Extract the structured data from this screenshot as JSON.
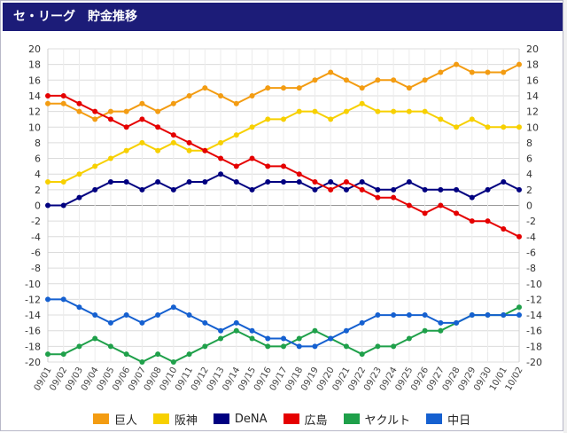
{
  "header": {
    "title": "セ・リーグ　貯金推移"
  },
  "chart_data": {
    "type": "line",
    "title": "セ・リーグ　貯金推移",
    "xlabel": "",
    "ylabel": "",
    "ylim": [
      -20,
      20
    ],
    "yticks": [
      -20,
      -18,
      -16,
      -14,
      -12,
      -10,
      -8,
      -6,
      -4,
      -2,
      0,
      2,
      4,
      6,
      8,
      10,
      12,
      14,
      16,
      18,
      20
    ],
    "grid": true,
    "legend_position": "bottom",
    "categories": [
      "09/01",
      "09/02",
      "09/03",
      "09/04",
      "09/05",
      "09/06",
      "09/07",
      "09/08",
      "09/10",
      "09/11",
      "09/12",
      "09/13",
      "09/14",
      "09/15",
      "09/16",
      "09/17",
      "09/18",
      "09/19",
      "09/20",
      "09/21",
      "09/22",
      "09/23",
      "09/24",
      "09/25",
      "09/26",
      "09/27",
      "09/28",
      "09/29",
      "09/30",
      "10/01",
      "10/02"
    ],
    "series": [
      {
        "name": "巨人",
        "color": "#f39c12",
        "values": [
          13,
          13,
          12,
          11,
          12,
          12,
          13,
          12,
          13,
          14,
          15,
          14,
          13,
          14,
          15,
          15,
          15,
          16,
          17,
          16,
          15,
          16,
          16,
          15,
          16,
          17,
          18,
          17,
          17,
          17,
          18
        ]
      },
      {
        "name": "阪神",
        "color": "#f7d000",
        "values": [
          3,
          3,
          4,
          5,
          6,
          7,
          8,
          7,
          8,
          7,
          7,
          8,
          9,
          10,
          11,
          11,
          12,
          12,
          11,
          12,
          13,
          12,
          12,
          12,
          12,
          11,
          10,
          11,
          10,
          10,
          10
        ]
      },
      {
        "name": "DeNA",
        "color": "#000080",
        "values": [
          0,
          0,
          1,
          2,
          3,
          3,
          2,
          3,
          2,
          3,
          3,
          4,
          3,
          2,
          3,
          3,
          3,
          2,
          3,
          2,
          3,
          2,
          2,
          3,
          2,
          2,
          2,
          1,
          2,
          3,
          2
        ]
      },
      {
        "name": "広島",
        "color": "#e50000",
        "values": [
          14,
          14,
          13,
          12,
          11,
          10,
          11,
          10,
          9,
          8,
          7,
          6,
          5,
          6,
          5,
          5,
          4,
          3,
          2,
          3,
          2,
          1,
          1,
          0,
          -1,
          0,
          -1,
          -2,
          -2,
          -3,
          -4
        ]
      },
      {
        "name": "ヤクルト",
        "color": "#1fa04a",
        "values": [
          -19,
          -19,
          -18,
          -17,
          -18,
          -19,
          -20,
          -19,
          -20,
          -19,
          -18,
          -17,
          -16,
          -17,
          -18,
          -18,
          -17,
          -16,
          -17,
          -18,
          -19,
          -18,
          -18,
          -17,
          -16,
          -16,
          -15,
          -14,
          -14,
          -14,
          -13
        ]
      },
      {
        "name": "中日",
        "color": "#1560d0",
        "values": [
          -12,
          -12,
          -13,
          -14,
          -15,
          -14,
          -15,
          -14,
          -13,
          -14,
          -15,
          -16,
          -15,
          -16,
          -17,
          -17,
          -18,
          -18,
          -17,
          -16,
          -15,
          -14,
          -14,
          -14,
          -14,
          -15,
          -15,
          -14,
          -14,
          -14,
          -14
        ]
      }
    ]
  }
}
